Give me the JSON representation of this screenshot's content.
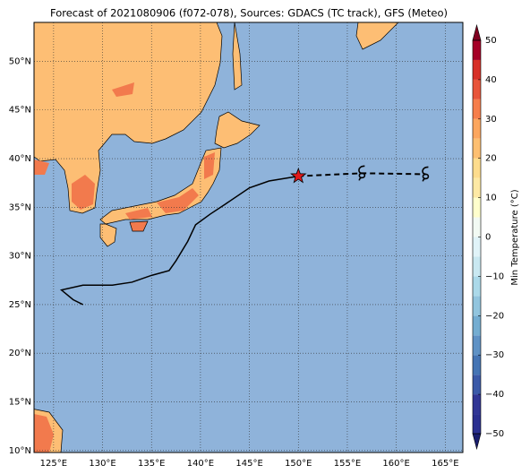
{
  "title": "Forecast of 2021080906 (f072-078), Sources: GDACS (TC track), GFS (Meteo)",
  "map": {
    "lonlim": [
      123,
      166.8
    ],
    "latlim": [
      9.8,
      54
    ],
    "lonticks": [
      {
        "value": 125,
        "label": "125°E"
      },
      {
        "value": 130,
        "label": "130°E"
      },
      {
        "value": 135,
        "label": "135°E"
      },
      {
        "value": 140,
        "label": "140°E"
      },
      {
        "value": 145,
        "label": "145°E"
      },
      {
        "value": 150,
        "label": "150°E"
      },
      {
        "value": 155,
        "label": "155°E"
      },
      {
        "value": 160,
        "label": "160°E"
      },
      {
        "value": 165,
        "label": "165°E"
      }
    ],
    "latticks": [
      {
        "value": 10,
        "label": "10°N"
      },
      {
        "value": 15,
        "label": "15°N"
      },
      {
        "value": 20,
        "label": "20°N"
      },
      {
        "value": 25,
        "label": "25°N"
      },
      {
        "value": 30,
        "label": "30°N"
      },
      {
        "value": 35,
        "label": "35°N"
      },
      {
        "value": 40,
        "label": "40°N"
      },
      {
        "value": 45,
        "label": "45°N"
      },
      {
        "value": 50,
        "label": "50°N"
      }
    ],
    "ocean_color": "#8fb3da",
    "grid": true,
    "track": {
      "past": {
        "lon": [
          128,
          127,
          125.8,
          128,
          131,
          133,
          135,
          136.8,
          137.5,
          138.7,
          139.5,
          141,
          142.5,
          145,
          147,
          150
        ],
        "lat": [
          25,
          25.5,
          26.5,
          27,
          27,
          27.3,
          28,
          28.5,
          29.5,
          31.5,
          33.2,
          34.3,
          35.3,
          37,
          37.7,
          38.2
        ]
      },
      "forecast": {
        "lon": [
          150,
          156.5,
          163
        ],
        "lat": [
          38.2,
          38.5,
          38.4
        ]
      }
    }
  },
  "colorbar": {
    "label": "Min Temperature (°C)",
    "lim": [
      -50,
      50
    ],
    "ticks": [
      50,
      40,
      30,
      20,
      10,
      0,
      {
        "value": -10,
        "label": "−10"
      },
      {
        "value": -20,
        "label": "−20"
      },
      {
        "value": -30,
        "label": "−30"
      },
      {
        "value": -40,
        "label": "−40"
      },
      {
        "value": -50,
        "label": "−50"
      }
    ],
    "levels": [
      -50,
      -45,
      -40,
      -35,
      -30,
      -25,
      -20,
      -15,
      -10,
      -5,
      0,
      5,
      10,
      15,
      20,
      25,
      30,
      35,
      40,
      45,
      50
    ],
    "colors": [
      "#2b3090",
      "#313695",
      "#3b5aa8",
      "#4575b4",
      "#5f92c5",
      "#74add1",
      "#92c5de",
      "#abd9e9",
      "#c9e8f1",
      "#e0f3f8",
      "#f2faf3",
      "#ffffcc",
      "#fee9a4",
      "#fedc8c",
      "#fdbf71",
      "#fca65e",
      "#f67e4b",
      "#e8553a",
      "#d73027",
      "#a50026"
    ],
    "under_color": "#1a1e6e",
    "over_color": "#800020"
  }
}
